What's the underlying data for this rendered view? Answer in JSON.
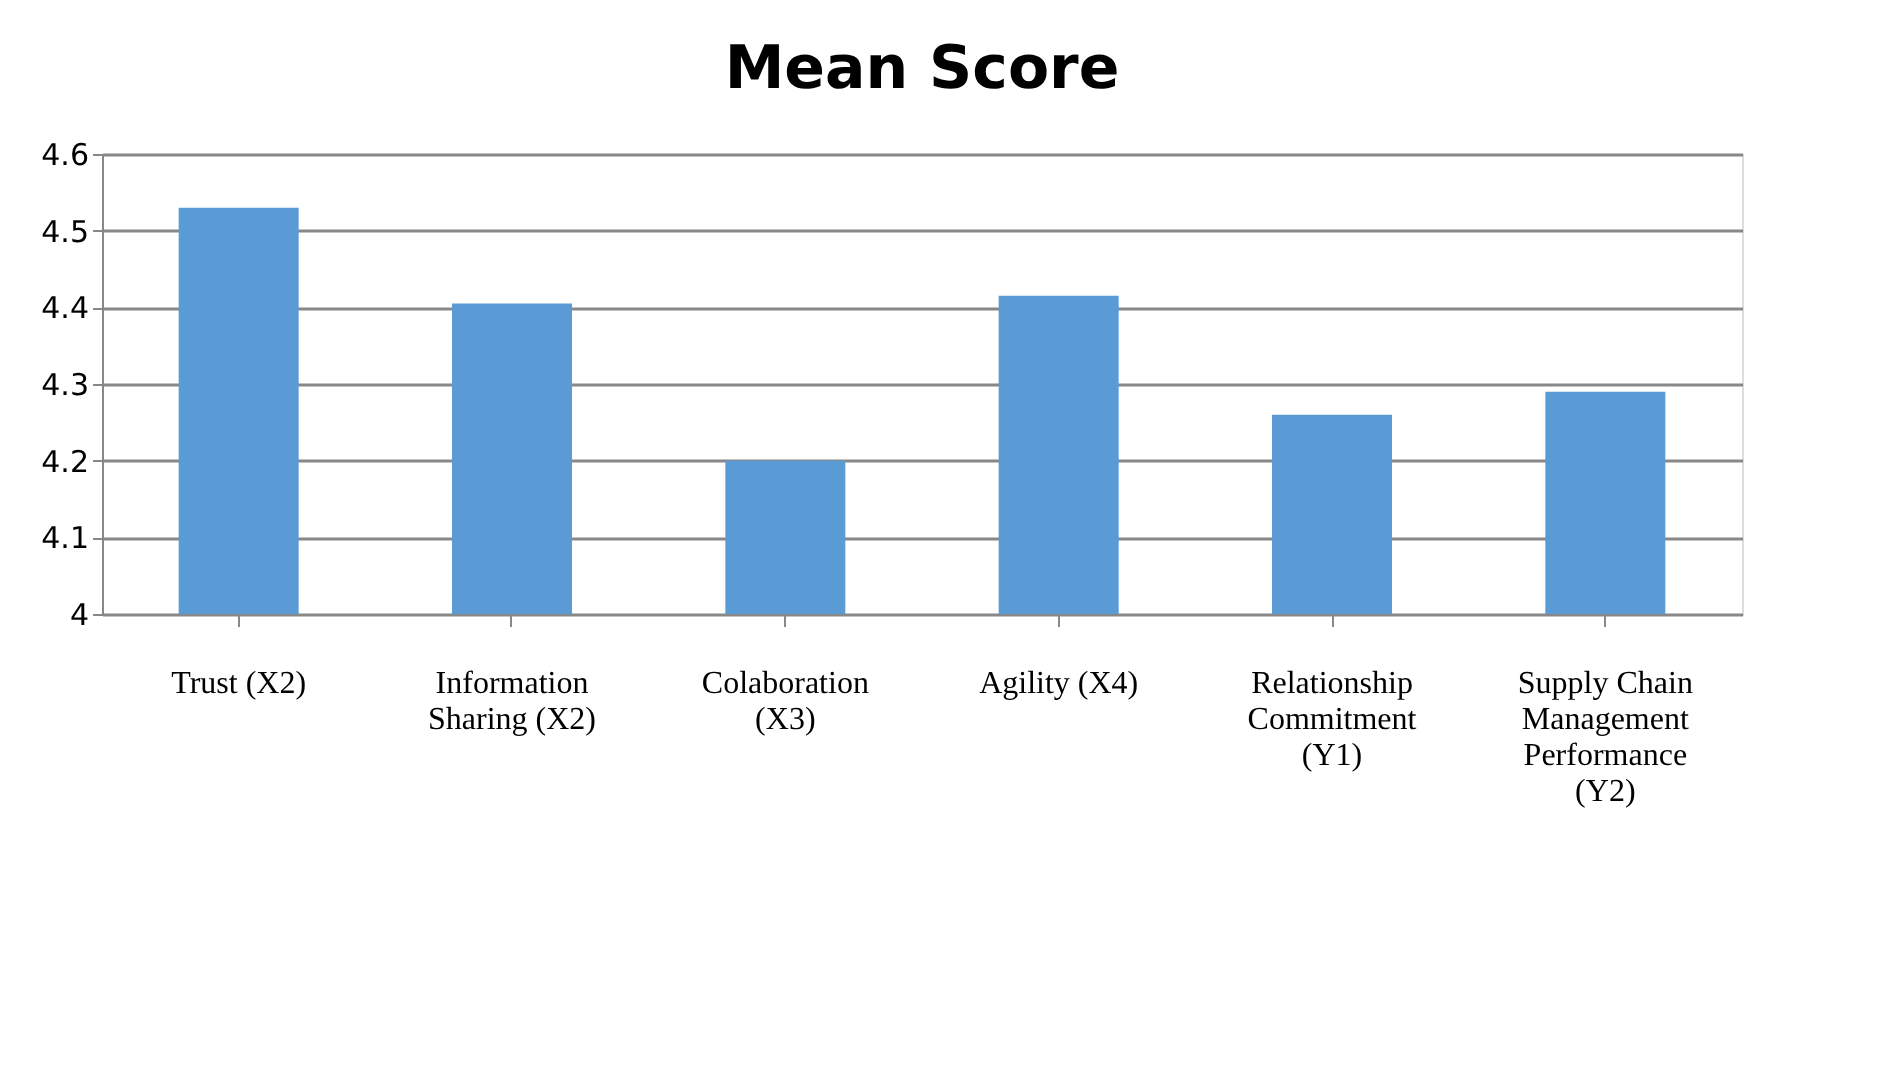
{
  "chart_data": {
    "type": "bar",
    "title": "Mean Score",
    "categories": [
      "Trust (X2)",
      "Information Sharing (X2)",
      "Colaboration (X3)",
      "Agility (X4)",
      "Relationship Commitment (Y1)",
      "Supply Chain Management Performance (Y2)"
    ],
    "values": [
      4.53,
      4.405,
      4.2,
      4.415,
      4.26,
      4.29
    ],
    "color": "#5b9bd5",
    "ylim": [
      4,
      4.6
    ],
    "yticks": [
      4,
      4.1,
      4.2,
      4.3,
      4.4,
      4.5,
      4.6
    ],
    "grid": "y"
  }
}
